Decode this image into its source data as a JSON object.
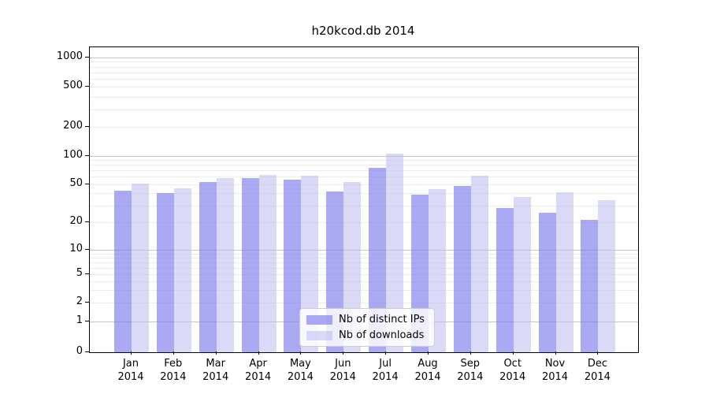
{
  "title": "h20kcod.db 2014",
  "chart_data": {
    "type": "bar",
    "title": "h20kcod.db 2014",
    "categories": [
      "Jan",
      "Feb",
      "Mar",
      "Apr",
      "May",
      "Jun",
      "Jul",
      "Aug",
      "Sep",
      "Oct",
      "Nov",
      "Dec"
    ],
    "category_year": "2014",
    "series": [
      {
        "name": "Nb of distinct IPs",
        "color_hex": "#a9a9f1",
        "color_rgba": "rgba(120,120,238,0.63)",
        "values": [
          43,
          40,
          53,
          58,
          56,
          42,
          75,
          39,
          48,
          28,
          25,
          21
        ]
      },
      {
        "name": "Nb of downloads",
        "color_hex": "#dadaf7",
        "color_rgba": "rgba(187,187,240,0.55)",
        "values": [
          51,
          45,
          58,
          63,
          61,
          53,
          105,
          44,
          61,
          37,
          41,
          34
        ]
      }
    ],
    "y_axis": {
      "scale": "symlog",
      "ticks": [
        0,
        1,
        2,
        5,
        10,
        20,
        50,
        100,
        200,
        500,
        1000
      ],
      "major_ticks": [
        1,
        10,
        100,
        1000
      ],
      "ylim": [
        0,
        1300
      ]
    },
    "x_axis": {
      "label": "",
      "tick_format": "month-over-year"
    },
    "ylabel": "",
    "xlabel": "",
    "grid": true,
    "legend_position": "lower center",
    "grid_major_color": "#c6c6c6",
    "grid_minor_color": "#ededed"
  }
}
